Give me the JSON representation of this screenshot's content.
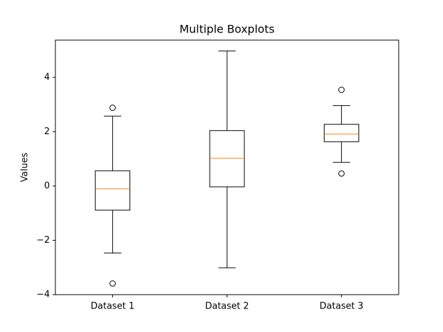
{
  "chart_data": {
    "type": "box",
    "title": "Multiple Boxplots",
    "ylabel": "Values",
    "categories": [
      "Dataset 1",
      "Dataset 2",
      "Dataset 3"
    ],
    "boxes": [
      {
        "whislo": -2.47,
        "q1": -0.89,
        "med": -0.1,
        "q3": 0.56,
        "whishi": 2.57,
        "fliers": [
          2.88,
          -3.59
        ]
      },
      {
        "whislo": -3.01,
        "q1": -0.03,
        "med": 1.02,
        "q3": 2.04,
        "whishi": 4.97,
        "fliers": []
      },
      {
        "whislo": 0.87,
        "q1": 1.63,
        "med": 1.91,
        "q3": 2.27,
        "whishi": 2.96,
        "fliers": [
          3.54,
          0.46
        ]
      }
    ],
    "box_color": "#000000",
    "median_color": "#ff7f0e",
    "ylim": [
      -4,
      5.37
    ],
    "yticks": [
      {
        "value": -4,
        "label": "−4"
      },
      {
        "value": -2,
        "label": "−2"
      },
      0,
      2,
      4
    ]
  }
}
